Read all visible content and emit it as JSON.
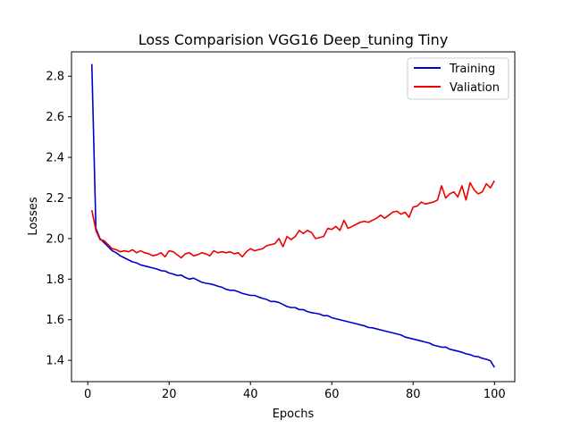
{
  "chart_data": {
    "type": "line",
    "title": "Loss Comparision VGG16 Deep_tuning Tiny",
    "xlabel": "Epochs",
    "ylabel": "Losses",
    "xlim": [
      -4,
      105
    ],
    "ylim": [
      1.295,
      2.92
    ],
    "xticks": [
      0,
      20,
      40,
      60,
      80,
      100
    ],
    "yticks": [
      1.4,
      1.6,
      1.8,
      2.0,
      2.2,
      2.4,
      2.6,
      2.8
    ],
    "xtick_labels": [
      "0",
      "20",
      "40",
      "60",
      "80",
      "100"
    ],
    "ytick_labels": [
      "1.4",
      "1.6",
      "1.8",
      "2.0",
      "2.2",
      "2.4",
      "2.6",
      "2.8"
    ],
    "grid": false,
    "legend_position": "top-right",
    "series": [
      {
        "name": "Training",
        "color": "#0000cc",
        "x": [
          1,
          2,
          3,
          4,
          5,
          6,
          7,
          8,
          9,
          10,
          11,
          12,
          13,
          14,
          15,
          16,
          17,
          18,
          19,
          20,
          21,
          22,
          23,
          24,
          25,
          26,
          27,
          28,
          29,
          30,
          31,
          32,
          33,
          34,
          35,
          36,
          37,
          38,
          39,
          40,
          41,
          42,
          43,
          44,
          45,
          46,
          47,
          48,
          49,
          50,
          51,
          52,
          53,
          54,
          55,
          56,
          57,
          58,
          59,
          60,
          61,
          62,
          63,
          64,
          65,
          66,
          67,
          68,
          69,
          70,
          71,
          72,
          73,
          74,
          75,
          76,
          77,
          78,
          79,
          80,
          81,
          82,
          83,
          84,
          85,
          86,
          87,
          88,
          89,
          90,
          91,
          92,
          93,
          94,
          95,
          96,
          97,
          98,
          99,
          100
        ],
        "y": [
          2.86,
          2.05,
          2.0,
          1.98,
          1.96,
          1.94,
          1.93,
          1.915,
          1.905,
          1.895,
          1.885,
          1.88,
          1.87,
          1.865,
          1.86,
          1.855,
          1.85,
          1.842,
          1.84,
          1.83,
          1.825,
          1.818,
          1.82,
          1.808,
          1.8,
          1.805,
          1.795,
          1.785,
          1.78,
          1.777,
          1.772,
          1.765,
          1.76,
          1.75,
          1.745,
          1.745,
          1.738,
          1.73,
          1.725,
          1.72,
          1.72,
          1.712,
          1.705,
          1.7,
          1.69,
          1.69,
          1.685,
          1.675,
          1.665,
          1.66,
          1.66,
          1.65,
          1.65,
          1.64,
          1.635,
          1.632,
          1.628,
          1.62,
          1.62,
          1.61,
          1.605,
          1.6,
          1.595,
          1.59,
          1.585,
          1.58,
          1.575,
          1.57,
          1.562,
          1.56,
          1.555,
          1.55,
          1.545,
          1.54,
          1.535,
          1.53,
          1.525,
          1.515,
          1.51,
          1.505,
          1.5,
          1.495,
          1.49,
          1.485,
          1.475,
          1.47,
          1.465,
          1.465,
          1.455,
          1.45,
          1.445,
          1.44,
          1.432,
          1.428,
          1.42,
          1.418,
          1.41,
          1.405,
          1.398,
          1.365
        ]
      },
      {
        "name": "Valiation",
        "color": "#ee0000",
        "x": [
          1,
          2,
          3,
          4,
          5,
          6,
          7,
          8,
          9,
          10,
          11,
          12,
          13,
          14,
          15,
          16,
          17,
          18,
          19,
          20,
          21,
          22,
          23,
          24,
          25,
          26,
          27,
          28,
          29,
          30,
          31,
          32,
          33,
          34,
          35,
          36,
          37,
          38,
          39,
          40,
          41,
          42,
          43,
          44,
          45,
          46,
          47,
          48,
          49,
          50,
          51,
          52,
          53,
          54,
          55,
          56,
          57,
          58,
          59,
          60,
          61,
          62,
          63,
          64,
          65,
          66,
          67,
          68,
          69,
          70,
          71,
          72,
          73,
          74,
          75,
          76,
          77,
          78,
          79,
          80,
          81,
          82,
          83,
          84,
          85,
          86,
          87,
          88,
          89,
          90,
          91,
          92,
          93,
          94,
          95,
          96,
          97,
          98,
          99,
          100
        ],
        "y": [
          2.14,
          2.04,
          1.995,
          1.99,
          1.97,
          1.95,
          1.945,
          1.935,
          1.94,
          1.935,
          1.945,
          1.93,
          1.94,
          1.93,
          1.925,
          1.915,
          1.92,
          1.93,
          1.91,
          1.94,
          1.935,
          1.92,
          1.905,
          1.925,
          1.93,
          1.915,
          1.92,
          1.93,
          1.925,
          1.915,
          1.94,
          1.93,
          1.935,
          1.93,
          1.935,
          1.925,
          1.93,
          1.91,
          1.935,
          1.95,
          1.94,
          1.945,
          1.95,
          1.965,
          1.97,
          1.975,
          2.0,
          1.96,
          2.01,
          1.995,
          2.01,
          2.04,
          2.025,
          2.04,
          2.03,
          2.0,
          2.005,
          2.01,
          2.05,
          2.045,
          2.06,
          2.04,
          2.09,
          2.05,
          2.06,
          2.07,
          2.08,
          2.085,
          2.08,
          2.09,
          2.1,
          2.115,
          2.1,
          2.115,
          2.13,
          2.135,
          2.12,
          2.13,
          2.105,
          2.155,
          2.16,
          2.18,
          2.17,
          2.175,
          2.18,
          2.19,
          2.26,
          2.2,
          2.22,
          2.23,
          2.205,
          2.26,
          2.19,
          2.275,
          2.24,
          2.22,
          2.23,
          2.27,
          2.25,
          2.285
        ]
      }
    ]
  }
}
